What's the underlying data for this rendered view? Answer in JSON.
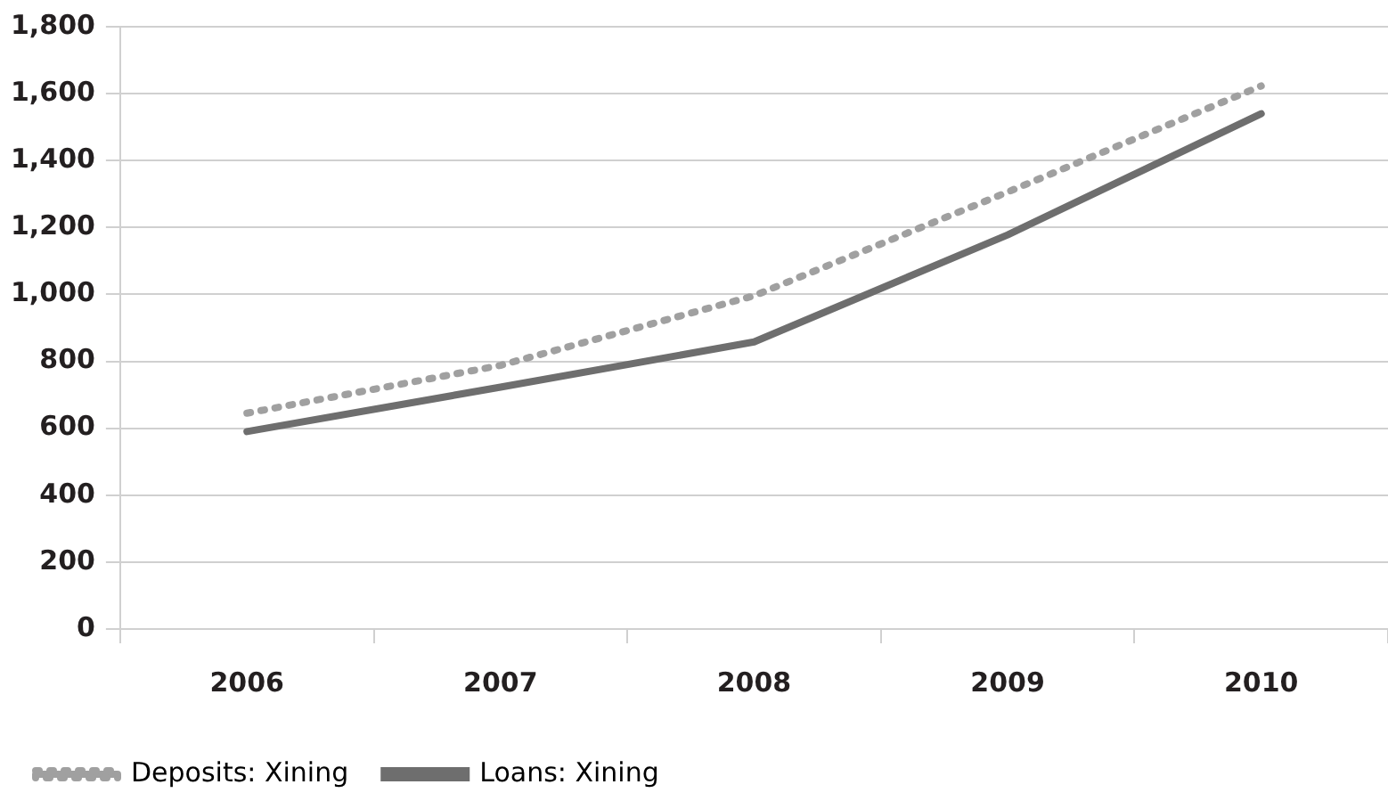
{
  "chart_data": {
    "type": "line",
    "categories": [
      "2006",
      "2007",
      "2008",
      "2009",
      "2010"
    ],
    "series": [
      {
        "name": "Deposits: Xining",
        "color": "#a0a0a0",
        "line_style": "dotted",
        "values": [
          645,
          788,
          996,
          1306,
          1623
        ]
      },
      {
        "name": "Loans: Xining",
        "color": "#6e6e6e",
        "line_style": "solid",
        "values": [
          590,
          723,
          858,
          1178,
          1540
        ]
      }
    ],
    "ylim": [
      0,
      1800
    ],
    "yticks": [
      0,
      200,
      400,
      600,
      800,
      {
        "value": 1000,
        "label": "1,000"
      },
      {
        "value": 1200,
        "label": "1,200"
      },
      {
        "value": 1400,
        "label": "1,400"
      },
      {
        "value": 1600,
        "label": "1,600"
      },
      {
        "value": 1800,
        "label": "1,800"
      }
    ],
    "grid": "y",
    "legend": "bottom left",
    "marker": "none"
  }
}
